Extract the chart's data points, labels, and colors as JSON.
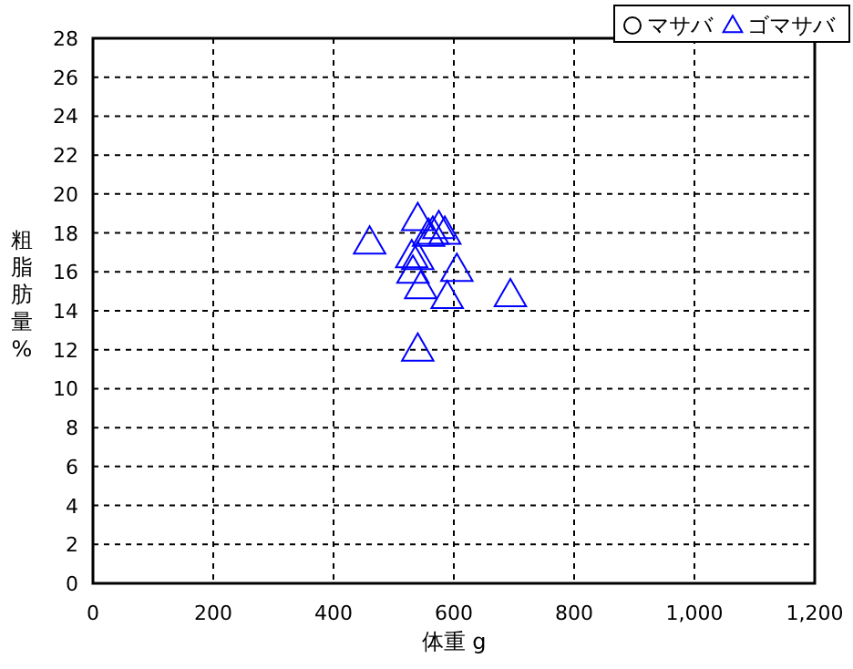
{
  "chart_data": {
    "type": "scatter",
    "xlabel": "体重 g",
    "ylabel": "粗脂肪量%",
    "xlim": [
      0,
      1200
    ],
    "xticks": [
      0,
      200,
      400,
      600,
      800,
      {
        "value": 1000,
        "label": "1,000"
      },
      {
        "value": 1200,
        "label": "1,200"
      }
    ],
    "ylim": [
      0,
      28
    ],
    "yticks": [
      0,
      2,
      4,
      6,
      8,
      10,
      12,
      14,
      16,
      18,
      20,
      22,
      24,
      26,
      28
    ],
    "grid": true,
    "legend": "top right",
    "series": [
      {
        "name": "マサバ",
        "color": "#000000",
        "marker": "circle"
      },
      {
        "name": "ゴマサバ",
        "color": "#0000ff",
        "marker": "triangle",
        "x": [
          460,
          540,
          575,
          565,
          585,
          558,
          530,
          540,
          532,
          605,
          545,
          589,
          694,
          540
        ],
        "values": [
          17.5,
          18.7,
          18.3,
          18.0,
          18.0,
          17.9,
          16.8,
          16.7,
          16.0,
          16.1,
          15.2,
          14.7,
          14.8,
          12.0
        ]
      }
    ]
  }
}
